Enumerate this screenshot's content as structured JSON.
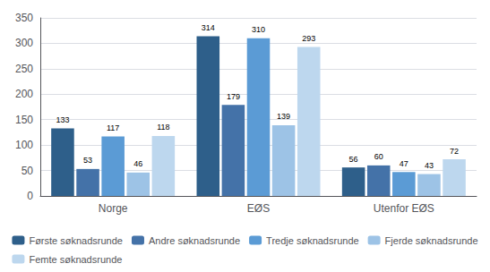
{
  "chart_data": {
    "type": "bar",
    "categories": [
      "Norge",
      "EØS",
      "Utenfor EØS"
    ],
    "series": [
      {
        "name": "Første søknadsrunde",
        "values": [
          133,
          314,
          56
        ],
        "color": "#2E5F8A"
      },
      {
        "name": "Andre søknadsrunde",
        "values": [
          53,
          179,
          60
        ],
        "color": "#4472A8"
      },
      {
        "name": "Tredje søknadsrunde",
        "values": [
          117,
          310,
          47
        ],
        "color": "#5B9BD5"
      },
      {
        "name": "Fjerde søknadsrunde",
        "values": [
          46,
          139,
          43
        ],
        "color": "#9DC3E6"
      },
      {
        "name": "Femte søknadsrunde",
        "values": [
          118,
          293,
          72
        ],
        "color": "#BDD7EE"
      }
    ],
    "ylim": [
      0,
      350
    ],
    "yticks": [
      0,
      50,
      100,
      150,
      200,
      250,
      300,
      350
    ],
    "grid": true,
    "legend": "bottom",
    "data_labels": true
  }
}
